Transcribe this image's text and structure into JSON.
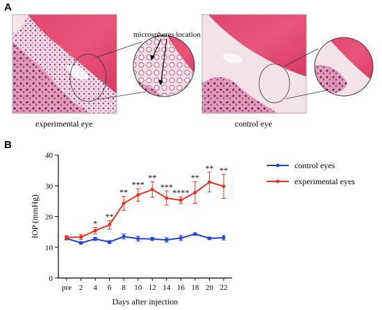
{
  "panel_a": {
    "label": "A",
    "annotation": "microspheres location",
    "left_caption": "experimental eye",
    "right_caption": "control eye",
    "colors": {
      "tissue_pink": "#e46f8e",
      "tissue_dark": "#b23a6e",
      "nuclei": "#6b3a8e",
      "background": "#f4ecee"
    }
  },
  "panel_b": {
    "label": "B"
  },
  "chart_data": {
    "type": "line",
    "title": "",
    "xlabel": "Days after injection",
    "ylabel": "IOP (mmHg)",
    "x": [
      "pre",
      "2",
      "4",
      "6",
      "8",
      "10",
      "12",
      "14",
      "16",
      "18",
      "20",
      "22"
    ],
    "ylim": [
      0,
      40
    ],
    "yticks": [
      "0",
      "10",
      "20",
      "30",
      "40"
    ],
    "grid": false,
    "legend_position": "right",
    "series": [
      {
        "name": "control eyes",
        "color": "#1f3fdd",
        "values": [
          12.9,
          11.4,
          12.7,
          11.7,
          13.5,
          12.8,
          12.7,
          12.4,
          13.0,
          14.3,
          12.9,
          13.1
        ],
        "errors": [
          0.5,
          0.4,
          0.5,
          0.5,
          0.8,
          0.8,
          0.5,
          0.7,
          0.8,
          0.4,
          0.4,
          0.7
        ]
      },
      {
        "name": "experimental eyes",
        "color": "#e8321e",
        "values": [
          13.2,
          13.3,
          15.4,
          17.3,
          24.3,
          27.0,
          28.8,
          26.0,
          25.3,
          27.8,
          31.2,
          29.8
        ],
        "errors": [
          0.6,
          0.8,
          1.0,
          1.4,
          2.3,
          2.0,
          2.5,
          2.3,
          1.1,
          3.5,
          3.2,
          3.9
        ]
      }
    ],
    "significance": [
      "",
      "",
      "*",
      "**",
      "**",
      "***",
      "**",
      "***",
      "****",
      "**",
      "**",
      "**"
    ]
  }
}
